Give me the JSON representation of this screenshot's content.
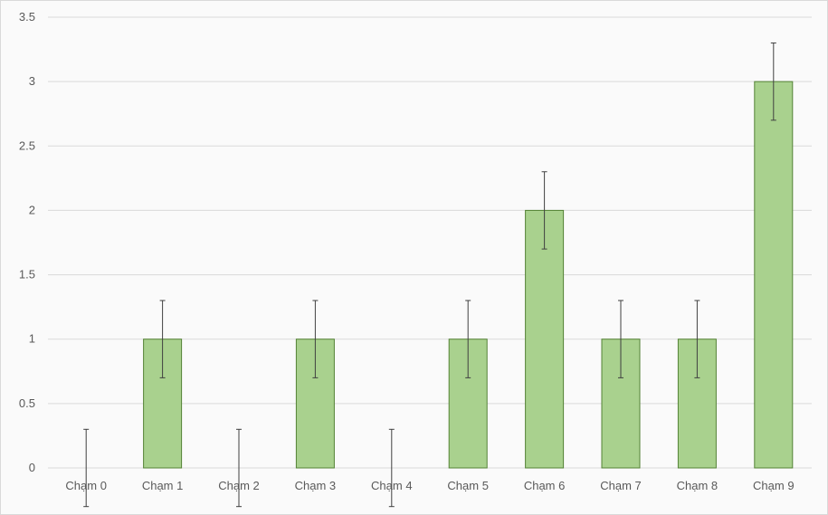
{
  "chart_data": {
    "type": "bar",
    "title": "",
    "xlabel": "",
    "ylabel": "",
    "categories": [
      "Chạm 0",
      "Chạm 1",
      "Chạm 2",
      "Chạm 3",
      "Chạm 4",
      "Chạm 5",
      "Chạm 6",
      "Chạm 7",
      "Chạm 8",
      "Chạm 9"
    ],
    "series": [
      {
        "values": [
          0,
          1,
          0,
          1,
          0,
          1,
          2,
          1,
          1,
          3
        ],
        "error": 0.3
      }
    ],
    "ylim": [
      0,
      3.5
    ],
    "yticks": [
      0,
      0.5,
      1,
      1.5,
      2,
      2.5,
      3,
      3.5
    ],
    "ytick_labels": [
      "0",
      "0.5",
      "1",
      "1.5",
      "2",
      "2.5",
      "3",
      "3.5"
    ],
    "grid": true,
    "legend": "none",
    "colors": {
      "bar_fill": "#a9d18e",
      "bar_stroke": "#548235",
      "error_bar": "#404040",
      "gridline": "#d9d9d9",
      "tick_text": "#595959"
    }
  }
}
